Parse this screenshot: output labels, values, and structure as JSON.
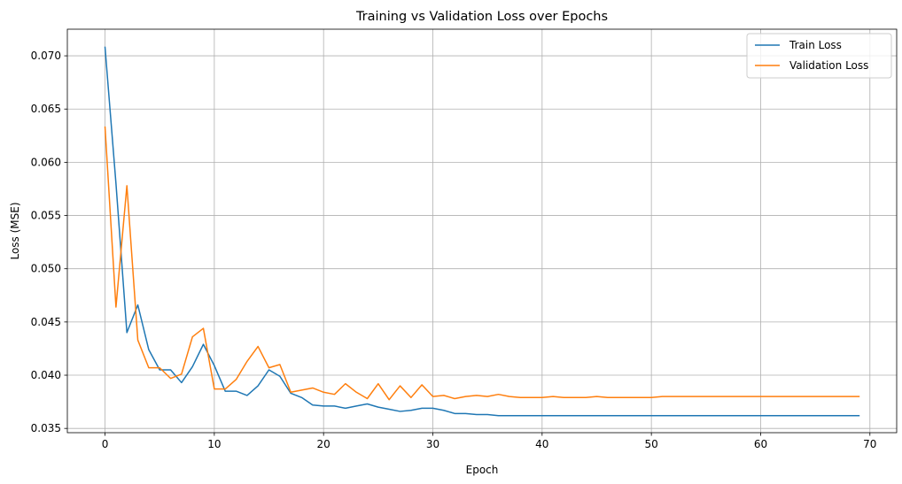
{
  "chart_data": {
    "type": "line",
    "title": "Training vs Validation Loss over Epochs",
    "xlabel": "Epoch",
    "ylabel": "Loss (MSE)",
    "xlim": [
      -3.45,
      72.45
    ],
    "ylim": [
      0.0346,
      0.0725
    ],
    "xticks": [
      0,
      10,
      20,
      30,
      40,
      50,
      60,
      70
    ],
    "xtick_labels": [
      "0",
      "10",
      "20",
      "30",
      "40",
      "50",
      "60",
      "70"
    ],
    "yticks": [
      0.035,
      0.04,
      0.045,
      0.05,
      0.055,
      0.06,
      0.065,
      0.07
    ],
    "ytick_labels": [
      "0.035",
      "0.040",
      "0.045",
      "0.050",
      "0.055",
      "0.060",
      "0.065",
      "0.070"
    ],
    "grid": true,
    "legend_position": "top-right",
    "x": [
      0,
      1,
      2,
      3,
      4,
      5,
      6,
      7,
      8,
      9,
      10,
      11,
      12,
      13,
      14,
      15,
      16,
      17,
      18,
      19,
      20,
      21,
      22,
      23,
      24,
      25,
      26,
      27,
      28,
      29,
      30,
      31,
      32,
      33,
      34,
      35,
      36,
      37,
      38,
      39,
      40,
      41,
      42,
      43,
      44,
      45,
      46,
      47,
      48,
      49,
      50,
      51,
      52,
      53,
      54,
      55,
      56,
      57,
      58,
      59,
      60,
      61,
      62,
      63,
      64,
      65,
      66,
      67,
      68,
      69
    ],
    "series": [
      {
        "name": "Train Loss",
        "color": "#1f77b4",
        "values": [
          0.0708,
          0.058,
          0.044,
          0.0466,
          0.0424,
          0.0405,
          0.0405,
          0.0393,
          0.0408,
          0.0429,
          0.0409,
          0.0385,
          0.0385,
          0.0381,
          0.039,
          0.0405,
          0.0399,
          0.0383,
          0.0379,
          0.0372,
          0.0371,
          0.0371,
          0.0369,
          0.0371,
          0.0373,
          0.037,
          0.0368,
          0.0366,
          0.0367,
          0.0369,
          0.0369,
          0.0367,
          0.0364,
          0.0364,
          0.0363,
          0.0363,
          0.0362,
          0.0362,
          0.0362,
          0.0362,
          0.0362,
          0.0362,
          0.0362,
          0.0362,
          0.0362,
          0.0362,
          0.0362,
          0.0362,
          0.0362,
          0.0362,
          0.0362,
          0.0362,
          0.0362,
          0.0362,
          0.0362,
          0.0362,
          0.0362,
          0.0362,
          0.0362,
          0.0362,
          0.0362,
          0.0362,
          0.0362,
          0.0362,
          0.0362,
          0.0362,
          0.0362,
          0.0362,
          0.0362,
          0.0362
        ]
      },
      {
        "name": "Validation Loss",
        "color": "#ff7f0e",
        "values": [
          0.0633,
          0.0464,
          0.0578,
          0.0433,
          0.0407,
          0.0407,
          0.0397,
          0.0401,
          0.0436,
          0.0444,
          0.0387,
          0.0387,
          0.0396,
          0.0413,
          0.0427,
          0.0407,
          0.041,
          0.0384,
          0.0386,
          0.0388,
          0.0384,
          0.0382,
          0.0392,
          0.0384,
          0.0378,
          0.0392,
          0.0377,
          0.039,
          0.0379,
          0.0391,
          0.038,
          0.0381,
          0.0378,
          0.038,
          0.0381,
          0.038,
          0.0382,
          0.038,
          0.0379,
          0.0379,
          0.0379,
          0.038,
          0.0379,
          0.0379,
          0.0379,
          0.038,
          0.0379,
          0.0379,
          0.0379,
          0.0379,
          0.0379,
          0.038,
          0.038,
          0.038,
          0.038,
          0.038,
          0.038,
          0.038,
          0.038,
          0.038,
          0.038,
          0.038,
          0.038,
          0.038,
          0.038,
          0.038,
          0.038,
          0.038,
          0.038,
          0.038
        ]
      }
    ]
  }
}
